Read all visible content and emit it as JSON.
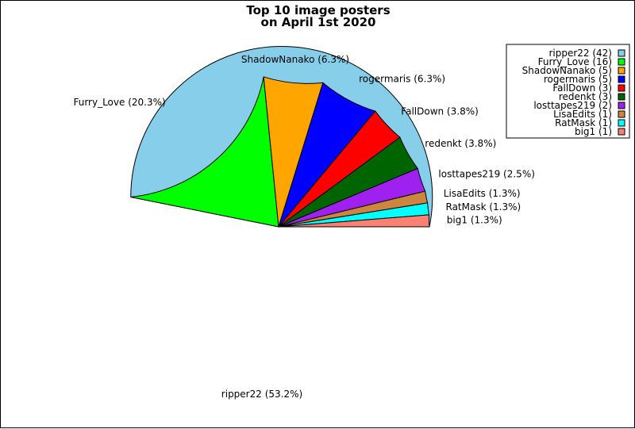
{
  "chart_data": {
    "type": "pie",
    "title_lines": [
      "Top 10 image posters",
      "on April 1st 2020"
    ],
    "legend_position": "top-right",
    "slices": [
      {
        "name": "ripper22",
        "count": 42,
        "percent": 53.2,
        "color": "#87ceeb",
        "label": "ripper22 (53.2%)",
        "legend": "ripper22 (42)"
      },
      {
        "name": "Furry_Love",
        "count": 16,
        "percent": 20.3,
        "color": "#00ff00",
        "label": "Furry_Love (20.3%)",
        "legend": "Furry_Love (16)"
      },
      {
        "name": "ShadowNanako",
        "count": 5,
        "percent": 6.3,
        "color": "#ffa500",
        "label": "ShadowNanako (6.3%)",
        "legend": "ShadowNanako (5)"
      },
      {
        "name": "rogermaris",
        "count": 5,
        "percent": 6.3,
        "color": "#0000ff",
        "label": "rogermaris (6.3%)",
        "legend": "rogermaris (5)"
      },
      {
        "name": "FallDown",
        "count": 3,
        "percent": 3.8,
        "color": "#ff0000",
        "label": "FallDown (3.8%)",
        "legend": "FallDown (3)"
      },
      {
        "name": "redenkt",
        "count": 3,
        "percent": 3.8,
        "color": "#006400",
        "label": "redenkt (3.8%)",
        "legend": "redenkt (3)"
      },
      {
        "name": "losttapes219",
        "count": 2,
        "percent": 2.5,
        "color": "#a020f0",
        "label": "losttapes219 (2.5%)",
        "legend": "losttapes219 (2)"
      },
      {
        "name": "LisaEdits",
        "count": 1,
        "percent": 1.3,
        "color": "#cd853f",
        "label": "LisaEdits (1.3%)",
        "legend": "LisaEdits (1)"
      },
      {
        "name": "RatMask",
        "count": 1,
        "percent": 1.3,
        "color": "#00ffff",
        "label": "RatMask (1.3%)",
        "legend": "RatMask (1)"
      },
      {
        "name": "big1",
        "count": 1,
        "percent": 1.3,
        "color": "#fa8072",
        "label": "big1 (1.3%)",
        "legend": "big1 (1)"
      }
    ]
  }
}
